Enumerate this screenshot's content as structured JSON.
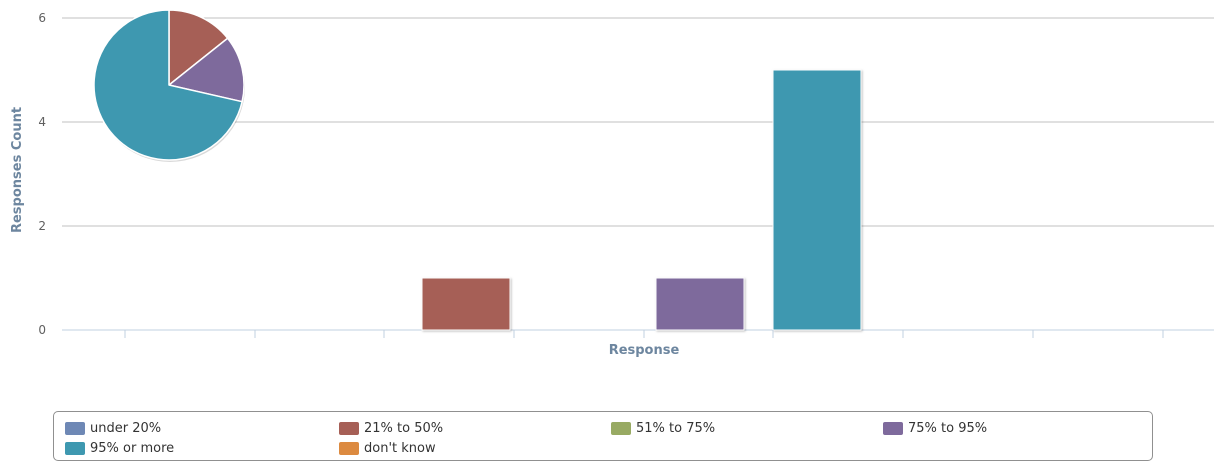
{
  "chart_data": [
    {
      "type": "bar",
      "xlabel": "Response",
      "ylabel": "Responses Count",
      "ylim": [
        0,
        6
      ],
      "y_ticks": [
        "0",
        "2",
        "4",
        "6"
      ],
      "grid": true,
      "series": [
        {
          "name": "under 20%",
          "value": 0,
          "color": "#6e88b5"
        },
        {
          "name": "21% to 50%",
          "value": 1,
          "color": "#a65f56"
        },
        {
          "name": "51% to 75%",
          "value": 0,
          "color": "#98aa63"
        },
        {
          "name": "75% to 95%",
          "value": 1,
          "color": "#7e6a9c"
        },
        {
          "name": "95% or more",
          "value": 5,
          "color": "#3e98b0"
        },
        {
          "name": "don't know",
          "value": 0,
          "color": "#dc8a40"
        }
      ]
    },
    {
      "type": "pie",
      "slices": [
        {
          "name": "21% to 50%",
          "value": 1,
          "color": "#a65f56"
        },
        {
          "name": "75% to 95%",
          "value": 1,
          "color": "#7e6a9c"
        },
        {
          "name": "95% or more",
          "value": 5,
          "color": "#3e98b0"
        }
      ]
    }
  ],
  "legend": {
    "placement": "bottom",
    "items": [
      {
        "label": "under 20%",
        "color": "#6e88b5"
      },
      {
        "label": "21% to 50%",
        "color": "#a65f56"
      },
      {
        "label": "51% to 75%",
        "color": "#98aa63"
      },
      {
        "label": "75% to 95%",
        "color": "#7e6a9c"
      },
      {
        "label": "95% or more",
        "color": "#3e98b0"
      },
      {
        "label": "don't know",
        "color": "#dc8a40"
      }
    ]
  }
}
